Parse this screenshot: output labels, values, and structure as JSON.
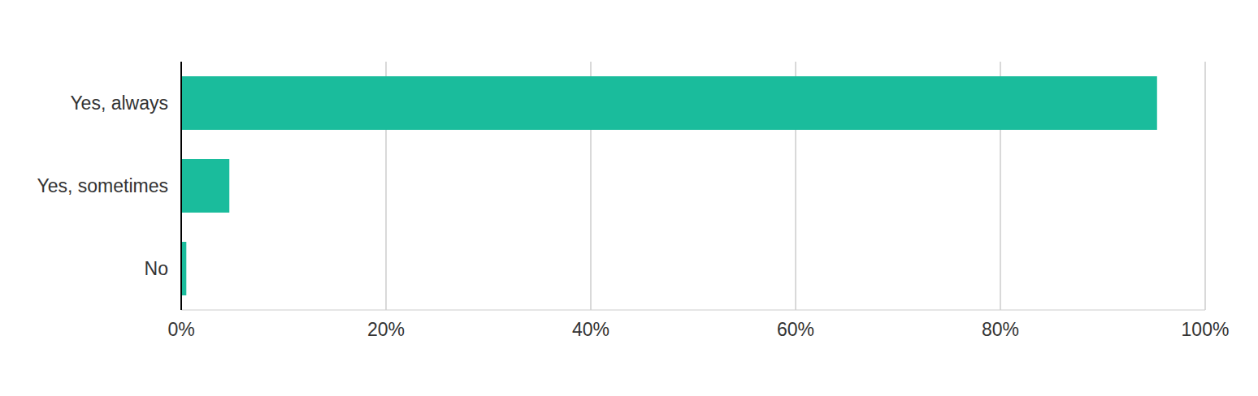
{
  "chart_data": {
    "type": "bar",
    "orientation": "horizontal",
    "categories": [
      "Yes, always",
      "Yes, sometimes",
      "No"
    ],
    "values": [
      95.3,
      4.7,
      0.5
    ],
    "color": "#1abc9c",
    "xlim": [
      0,
      100
    ],
    "xticks": [
      {
        "value": 0,
        "label": "0%"
      },
      {
        "value": 20,
        "label": "20%"
      },
      {
        "value": 40,
        "label": "40%"
      },
      {
        "value": 60,
        "label": "60%"
      },
      {
        "value": 80,
        "label": "80%"
      },
      {
        "value": 100,
        "label": "100%"
      }
    ],
    "grid": true
  }
}
